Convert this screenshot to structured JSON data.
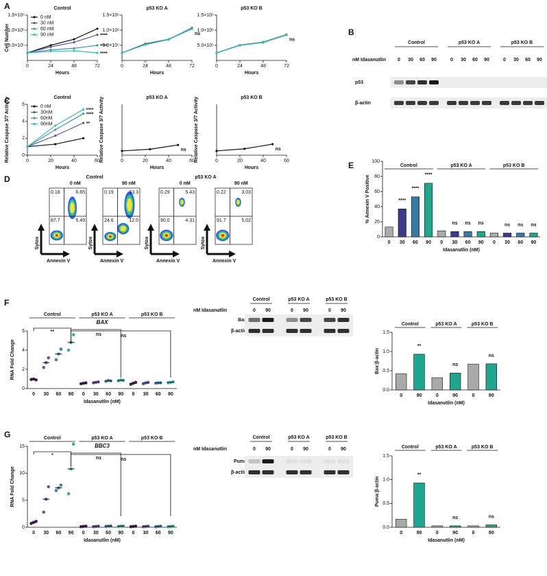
{
  "panel_letters": [
    "A",
    "B",
    "C",
    "D",
    "E",
    "F",
    "G"
  ],
  "chart_data": [
    {
      "type": "line",
      "title": "Control",
      "ylabel": "Cell Number",
      "xlabel": "Hours",
      "x": [
        0,
        24,
        48,
        72
      ],
      "xlim": [
        0,
        72
      ],
      "xticks": [
        0,
        24,
        48,
        72
      ],
      "ylim": [
        0,
        1500000
      ],
      "yticks": [
        {
          "value": 500000,
          "label": "5.0×10⁵"
        },
        {
          "value": 1000000,
          "label": "1.0×10⁶"
        },
        {
          "value": 1500000,
          "label": "1.5×10⁶"
        }
      ],
      "legend": "upper left",
      "series": [
        {
          "name": "0 nM",
          "color": "#111111",
          "values": [
            250000,
            500000,
            700000,
            1050000
          ]
        },
        {
          "name": "30 nM",
          "color": "#5454a3",
          "values": [
            250000,
            450000,
            600000,
            850000
          ]
        },
        {
          "name": "60 nM",
          "color": "#4d8fb5",
          "values": [
            250000,
            350000,
            400000,
            500000
          ]
        },
        {
          "name": "90 nM",
          "color": "#2fc2a6",
          "values": [
            250000,
            300000,
            320000,
            250000
          ]
        }
      ],
      "annotations": [
        "****",
        "****",
        "****"
      ]
    },
    {
      "type": "line",
      "title": "p53 KO A",
      "xlabel": "Hours",
      "x": [
        0,
        24,
        48,
        72
      ],
      "xlim": [
        0,
        72
      ],
      "xticks": [
        0,
        24,
        48,
        72
      ],
      "ylim": [
        0,
        1500000
      ],
      "yticks": [
        {
          "value": 500000,
          "label": "5.0×10⁵"
        },
        {
          "value": 1000000,
          "label": "1.0×10⁶"
        },
        {
          "value": 1500000,
          "label": "1.5×10⁶"
        }
      ],
      "series": [
        {
          "color": "#111111",
          "values": [
            250000,
            550000,
            700000,
            1050000
          ]
        },
        {
          "color": "#5454a3",
          "values": [
            250000,
            540000,
            690000,
            1080000
          ]
        },
        {
          "color": "#4d8fb5",
          "values": [
            250000,
            530000,
            700000,
            1060000
          ]
        },
        {
          "color": "#2fc2a6",
          "values": [
            250000,
            520000,
            690000,
            1040000
          ]
        }
      ],
      "annotations": [
        "ns"
      ]
    },
    {
      "type": "line",
      "title": "p53 KO B",
      "xlabel": "Hours",
      "x": [
        0,
        24,
        48,
        72
      ],
      "xlim": [
        0,
        72
      ],
      "xticks": [
        0,
        24,
        48,
        72
      ],
      "ylim": [
        0,
        1500000
      ],
      "yticks": [
        {
          "value": 500000,
          "label": "5.0×10⁵"
        },
        {
          "value": 1000000,
          "label": "1.0×10⁶"
        },
        {
          "value": 1500000,
          "label": "1.5×10⁶"
        }
      ],
      "series": [
        {
          "color": "#111111",
          "values": [
            250000,
            500000,
            600000,
            850000
          ]
        },
        {
          "color": "#5454a3",
          "values": [
            250000,
            510000,
            610000,
            860000
          ]
        },
        {
          "color": "#4d8fb5",
          "values": [
            250000,
            500000,
            590000,
            840000
          ]
        },
        {
          "color": "#2fc2a6",
          "values": [
            250000,
            495000,
            600000,
            850000
          ]
        }
      ],
      "annotations": [
        "ns"
      ]
    },
    {
      "type": "line",
      "title": "Control",
      "ylabel": "Relative Caspase 3/7 Activity",
      "xlabel": "Hours",
      "x": [
        0,
        24,
        48
      ],
      "xlim": [
        0,
        60
      ],
      "xticks": [
        0,
        20,
        40,
        60
      ],
      "ylim": [
        0,
        6
      ],
      "yticks": [
        0,
        2,
        4,
        6
      ],
      "legend": "upper left",
      "series": [
        {
          "name": "0 nM",
          "color": "#111111",
          "values": [
            1,
            1.3,
            2.0
          ]
        },
        {
          "name": "30nM",
          "color": "#5454a3",
          "values": [
            1,
            2.3,
            3.8
          ]
        },
        {
          "name": "60nM",
          "color": "#4d8fb5",
          "values": [
            1,
            3.0,
            4.9
          ]
        },
        {
          "name": "90nM",
          "color": "#2fc2a6",
          "values": [
            1,
            3.5,
            5.4
          ]
        }
      ],
      "annotations": [
        "****",
        "****",
        "**"
      ]
    },
    {
      "type": "line",
      "title": "p53 KO A",
      "ylabel": "Relative Caspase 3/7 Activity",
      "xlabel": "Hours",
      "x": [
        0,
        24,
        48
      ],
      "xlim": [
        0,
        60
      ],
      "xticks": [
        0,
        20,
        40,
        60
      ],
      "ylim": [
        0,
        6
      ],
      "series": [
        {
          "color": "#111111",
          "values": [
            0.5,
            0.7,
            1.2
          ]
        }
      ],
      "annotations": [
        "ns"
      ]
    },
    {
      "type": "line",
      "title": "p53 KO B",
      "ylabel": "Relative Caspase 3/7 Activity",
      "xlabel": "Hours",
      "x": [
        0,
        24,
        48
      ],
      "xlim": [
        0,
        60
      ],
      "xticks": [
        0,
        20,
        40,
        60
      ],
      "ylim": [
        0,
        6
      ],
      "series": [
        {
          "color": "#111111",
          "values": [
            0.5,
            0.75,
            1.3
          ]
        }
      ],
      "annotations": [
        "ns"
      ]
    },
    {
      "type": "bar",
      "ylabel": "% Annexin V Positive",
      "xlabel": "Idasanutlin (nM)",
      "groups": [
        "Control",
        "p53 KO A",
        "p53 KO B"
      ],
      "categories": [
        "0",
        "30",
        "60",
        "90",
        "0",
        "30",
        "60",
        "90",
        "0",
        "30",
        "60",
        "90"
      ],
      "values": [
        13,
        37,
        53,
        71,
        8,
        7,
        7,
        7,
        5,
        5,
        5,
        5
      ],
      "colors": [
        "#aaaaaa",
        "#3c3a8a",
        "#3b78a6",
        "#1fa68c",
        "#aaaaaa",
        "#3c3a8a",
        "#3b78a6",
        "#1fa68c",
        "#aaaaaa",
        "#3c3a8a",
        "#3b78a6",
        "#1fa68c"
      ],
      "ylim": [
        0,
        100
      ],
      "yticks": [
        0,
        20,
        40,
        60,
        80,
        100
      ],
      "annotations": [
        null,
        "****",
        "****",
        "****",
        null,
        "ns",
        "ns",
        "ns",
        null,
        "ns",
        "ns",
        "ns"
      ]
    },
    {
      "type": "dot",
      "title": "BAX",
      "ylabel": "RNA Fold Change",
      "xlabel": "Idasanutlin (nM)",
      "groups": [
        "Control",
        "p53 KO A",
        "p53 KO B"
      ],
      "group_annotations": [
        "**",
        "ns",
        "ns"
      ],
      "categories": [
        "0",
        "30",
        "60",
        "90",
        "0",
        "30",
        "60",
        "90",
        "0",
        "30",
        "60",
        "90"
      ],
      "values": [
        0.95,
        2.7,
        3.6,
        4.8,
        0.55,
        0.65,
        0.8,
        0.85,
        0.55,
        0.6,
        0.6,
        0.65
      ],
      "points": [
        [
          0.95,
          1.0,
          0.9
        ],
        [
          2.2,
          2.7,
          3.2
        ],
        [
          3.0,
          3.6,
          4.1
        ],
        [
          4.0,
          4.8,
          5.6
        ],
        [
          0.5,
          0.55,
          0.6
        ],
        [
          0.6,
          0.65,
          0.7
        ],
        [
          0.75,
          0.85,
          0.8
        ],
        [
          0.8,
          0.9,
          0.85
        ],
        [
          0.45,
          0.55,
          0.65
        ],
        [
          0.5,
          0.6,
          0.65
        ],
        [
          0.55,
          0.6,
          0.6
        ],
        [
          0.6,
          0.65,
          0.7
        ]
      ],
      "colors": [
        "#4b1b5f",
        "#5a5aa8",
        "#3f7fa8",
        "#2bb39a",
        "#4b1b5f",
        "#5a5aa8",
        "#3f7fa8",
        "#2bb39a",
        "#4b1b5f",
        "#5a5aa8",
        "#3f7fa8",
        "#2bb39a"
      ],
      "ylim": [
        0,
        6
      ],
      "yticks": [
        0,
        2,
        4,
        6
      ]
    },
    {
      "type": "bar",
      "ylabel": "Bax:β-actin",
      "xlabel": "Idasanutlin (nM)",
      "groups": [
        "Control",
        "p53 KO A",
        "p53 KO B"
      ],
      "categories": [
        "0",
        "90",
        "0",
        "90",
        "0",
        "90"
      ],
      "values": [
        0.42,
        0.93,
        0.32,
        0.44,
        0.67,
        0.68
      ],
      "colors": [
        "#aaaaaa",
        "#1fa68c",
        "#aaaaaa",
        "#1fa68c",
        "#aaaaaa",
        "#1fa68c"
      ],
      "ylim": [
        0,
        1.5
      ],
      "yticks": [
        {
          "value": 0,
          "label": "0.0"
        },
        0.5,
        {
          "value": 1,
          "label": "1.0"
        },
        1.5
      ],
      "annotations": [
        null,
        "**",
        null,
        "ns",
        null,
        "ns"
      ]
    },
    {
      "type": "dot",
      "title": "BBC3",
      "ylabel": "RNA Fold Change",
      "xlabel": "Idasanutlin (nM)",
      "groups": [
        "Control",
        "p53 KO A",
        "p53 KO B"
      ],
      "group_annotations": [
        "*",
        "ns",
        "ns"
      ],
      "categories": [
        "0",
        "30",
        "60",
        "90",
        "0",
        "30",
        "60",
        "90",
        "0",
        "30",
        "60",
        "90"
      ],
      "values": [
        0.9,
        5.2,
        7.3,
        10.8,
        0.15,
        0.15,
        0.2,
        0.2,
        0.15,
        0.15,
        0.15,
        0.15
      ],
      "points": [
        [
          0.7,
          0.9,
          1.1
        ],
        [
          2.8,
          5.2,
          7.5
        ],
        [
          6.8,
          7.3,
          7.8
        ],
        [
          6.2,
          10.8,
          15.4
        ],
        [
          0.1,
          0.15,
          0.2
        ],
        [
          0.1,
          0.15,
          0.2
        ],
        [
          0.15,
          0.2,
          0.25
        ],
        [
          0.15,
          0.2,
          0.25
        ],
        [
          0.1,
          0.15,
          0.2
        ],
        [
          0.1,
          0.15,
          0.2
        ],
        [
          0.1,
          0.15,
          0.2
        ],
        [
          0.1,
          0.15,
          0.2
        ]
      ],
      "colors": [
        "#4b1b5f",
        "#5a5aa8",
        "#3f7fa8",
        "#2bb39a",
        "#4b1b5f",
        "#5a5aa8",
        "#3f7fa8",
        "#2bb39a",
        "#4b1b5f",
        "#5a5aa8",
        "#3f7fa8",
        "#2bb39a"
      ],
      "ylim": [
        0,
        15
      ],
      "yticks": [
        0,
        5,
        10,
        15
      ]
    },
    {
      "type": "bar",
      "ylabel": "Puma:β-actin",
      "xlabel": "Idasanutlin (nM)",
      "groups": [
        "Control",
        "p53 KO A",
        "p53 KO B"
      ],
      "categories": [
        "0",
        "90",
        "0",
        "90",
        "0",
        "90"
      ],
      "values": [
        0.17,
        0.93,
        0.03,
        0.03,
        0.03,
        0.05
      ],
      "colors": [
        "#aaaaaa",
        "#1fa68c",
        "#aaaaaa",
        "#1fa68c",
        "#aaaaaa",
        "#1fa68c"
      ],
      "ylim": [
        0,
        1.5
      ],
      "yticks": [
        {
          "value": 0,
          "label": "0.0"
        },
        0.5,
        {
          "value": 1,
          "label": "1.0"
        },
        1.5
      ],
      "annotations": [
        null,
        "**",
        null,
        "ns",
        null,
        "ns"
      ]
    }
  ],
  "blots": [
    {
      "group_labels": [
        "Control",
        "p53 KO A",
        "p53 KO B"
      ],
      "dose_label": "nM Idasanutlin",
      "lanes": [
        "0",
        "30",
        "60",
        "90",
        "0",
        "30",
        "60",
        "90",
        "0",
        "30",
        "60",
        "90"
      ],
      "rows": [
        "p53",
        "β-actin"
      ]
    },
    {
      "group_labels": [
        "Control",
        "p53 KO A",
        "p53 KO B"
      ],
      "dose_label": "nM Idasanutlin",
      "lanes": [
        "0",
        "90",
        "0",
        "90",
        "0",
        "90"
      ],
      "rows": [
        "Bax",
        "β-actin"
      ]
    },
    {
      "group_labels": [
        "Control",
        "p53 KO A",
        "p53 KO B"
      ],
      "dose_label": "nM Idasanutlin",
      "lanes": [
        "0",
        "90",
        "0",
        "90",
        "0",
        "90"
      ],
      "rows": [
        "Puma",
        "β-actin"
      ]
    }
  ],
  "flow": {
    "group_titles": [
      "Control",
      "p53 KO A"
    ],
    "y_label": "Sytox",
    "x_label": "Annexin V",
    "plots": [
      {
        "title": "0 nM",
        "quadrants": [
          "0.18",
          "6.65",
          "87.7",
          "5.49"
        ]
      },
      {
        "title": "90 nM",
        "quadrants": [
          "0.19",
          "63.3",
          "24.6",
          "12.0"
        ]
      },
      {
        "title": "0 nM",
        "quadrants": [
          "0.29",
          "5.43",
          "90.0",
          "4.31"
        ]
      },
      {
        "title": "90 nM",
        "quadrants": [
          "0.22",
          "3.03",
          "91.7",
          "5.02"
        ]
      }
    ]
  }
}
